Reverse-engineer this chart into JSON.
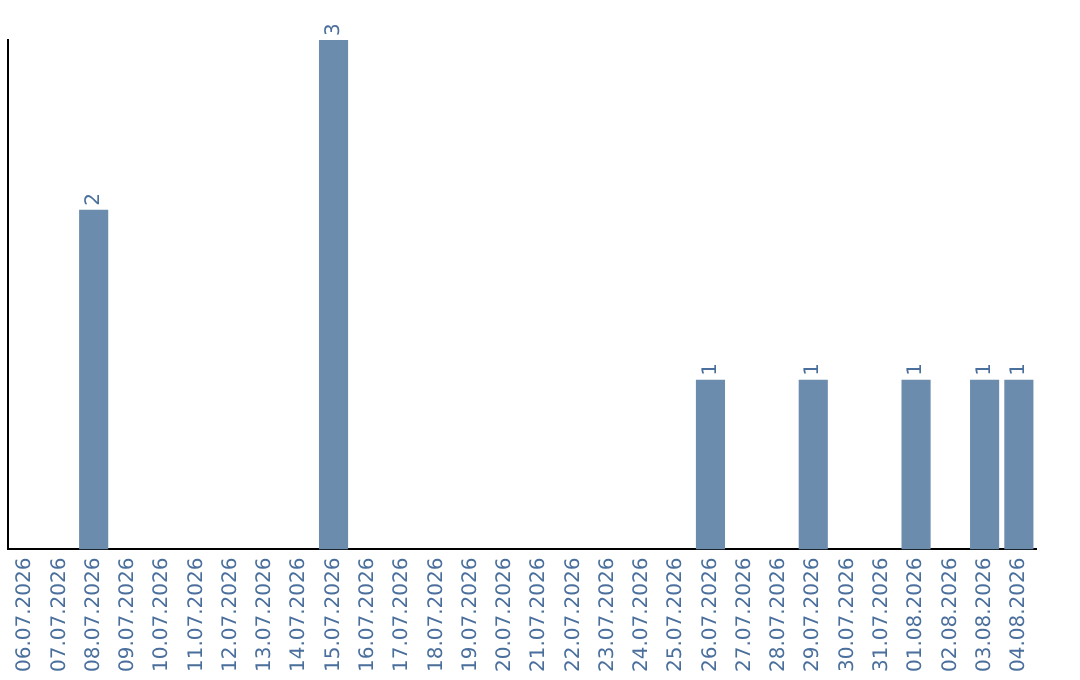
{
  "chart_data": {
    "type": "bar",
    "categories": [
      "06.07.2026",
      "07.07.2026",
      "08.07.2026",
      "09.07.2026",
      "10.07.2026",
      "11.07.2026",
      "12.07.2026",
      "13.07.2026",
      "14.07.2026",
      "15.07.2026",
      "16.07.2026",
      "17.07.2026",
      "18.07.2026",
      "19.07.2026",
      "20.07.2026",
      "21.07.2026",
      "22.07.2026",
      "23.07.2026",
      "24.07.2026",
      "25.07.2026",
      "26.07.2026",
      "27.07.2026",
      "28.07.2026",
      "29.07.2026",
      "30.07.2026",
      "31.07.2026",
      "01.08.2026",
      "02.08.2026",
      "03.08.2026",
      "04.08.2026"
    ],
    "values": [
      0,
      0,
      2,
      0,
      0,
      0,
      0,
      0,
      0,
      3,
      0,
      0,
      0,
      0,
      0,
      0,
      0,
      0,
      0,
      0,
      1,
      0,
      0,
      1,
      0,
      0,
      1,
      0,
      1,
      1
    ],
    "value_labels": [
      null,
      null,
      "2",
      null,
      null,
      null,
      null,
      null,
      null,
      "3",
      null,
      null,
      null,
      null,
      null,
      null,
      null,
      null,
      null,
      null,
      "1",
      null,
      null,
      "1",
      null,
      null,
      "1",
      null,
      "1",
      "1"
    ],
    "color": "#6b8cad",
    "grid": false,
    "legend": false,
    "tick_labels": "x"
  }
}
